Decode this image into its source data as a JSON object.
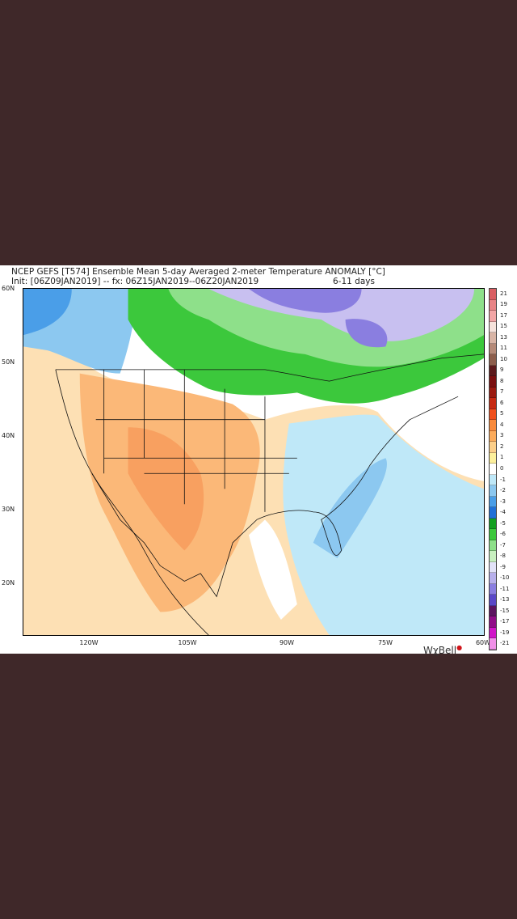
{
  "header": {
    "title": "NCEP GEFS [T574] Ensemble Mean 5-day Averaged 2-meter Temperature ANOMALY [°C]",
    "init": "Init: [06Z09JAN2019] -- fx: 06Z15JAN2019--06Z20JAN2019",
    "range": "6-11 days"
  },
  "axes": {
    "lat_labels": [
      "60N",
      "50N",
      "40N",
      "30N",
      "20N"
    ],
    "lon_labels": [
      "120W",
      "105W",
      "90W",
      "75W",
      "60W"
    ]
  },
  "colorbar": {
    "labels": [
      "21",
      "19",
      "17",
      "15",
      "13",
      "11",
      "10",
      "9",
      "8",
      "7",
      "6",
      "5",
      "4",
      "3",
      "2",
      "1",
      "0",
      "-1",
      "-2",
      "-3",
      "-4",
      "-5",
      "-6",
      "-7",
      "-8",
      "-9",
      "-10",
      "-11",
      "-13",
      "-15",
      "-17",
      "-19",
      "-21"
    ],
    "colors": [
      "#d95f63",
      "#e88486",
      "#f2a6a6",
      "#f6e3dc",
      "#d9b5a6",
      "#b58a78",
      "#8c5e4c",
      "#5c1a1c",
      "#7a1010",
      "#9a1a10",
      "#c62a12",
      "#f0501e",
      "#f88a3c",
      "#fbab5c",
      "#fccf8a",
      "#fdf09c",
      "#ffffff",
      "#bfe8f8",
      "#8cc8f0",
      "#4a9ee8",
      "#2070d8",
      "#12a020",
      "#3cc83c",
      "#8ee08a",
      "#c8f0c0",
      "#e2e2f8",
      "#b8b0ec",
      "#8a7ee0",
      "#5a48c8",
      "#5c1460",
      "#900c88",
      "#d014c8",
      "#f090e8"
    ]
  },
  "logo": {
    "text": "WχBell"
  }
}
